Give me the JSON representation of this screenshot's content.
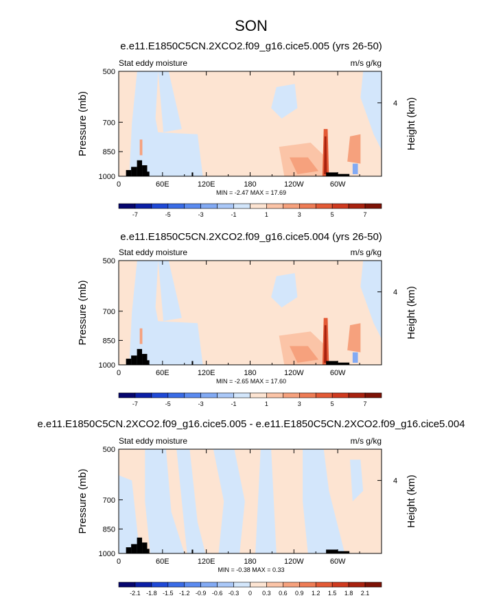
{
  "figure_title": "SON",
  "colors": {
    "land": "#000000",
    "frame": "#000000",
    "background": "#ffffff"
  },
  "chart_data": [
    {
      "type": "heatmap",
      "title": "e.e11.E1850C5CN.2XCO2.f09_g16.cice5.005 (yrs 26-50)",
      "left_label": "Stat eddy moisture",
      "right_label": "m/s g/kg",
      "ylabel": "Pressure (mb)",
      "ylabel_right": "Height (km)",
      "x_ticks": [
        "0",
        "60E",
        "120E",
        "180",
        "120W",
        "60W"
      ],
      "x_tick_values": [
        0,
        60,
        120,
        180,
        240,
        300
      ],
      "xlim": [
        0,
        360
      ],
      "y_ticks": [
        "500",
        "700",
        "850",
        "1000"
      ],
      "y_tick_values": [
        500,
        700,
        850,
        1000
      ],
      "ylim": [
        1000,
        500
      ],
      "y_right_ticks": [
        "4"
      ],
      "stats": "MIN = -2.47  MAX = 17.69",
      "levels": [
        -8,
        -7,
        -6,
        -5,
        -4,
        -3,
        -2,
        -1,
        0,
        1,
        2,
        3,
        4,
        5,
        6,
        7,
        8
      ],
      "colorbar_labels": [
        "-7",
        "-5",
        "-3",
        "-1",
        "1",
        "3",
        "5",
        "7"
      ],
      "colorbar_colors": [
        "#06066e",
        "#0b1fa6",
        "#1f49d6",
        "#3a6ce6",
        "#5b8bf0",
        "#82aaf4",
        "#aac8f8",
        "#d3e6fb",
        "#fde4d2",
        "#fbc4a7",
        "#f6a17d",
        "#ee7c55",
        "#e35a36",
        "#cf3a1f",
        "#a8220f",
        "#7d1206"
      ]
    },
    {
      "type": "heatmap",
      "title": "e.e11.E1850C5CN.2XCO2.f09_g16.cice5.004 (yrs 26-50)",
      "left_label": "Stat eddy moisture",
      "right_label": "m/s g/kg",
      "ylabel": "Pressure (mb)",
      "ylabel_right": "Height (km)",
      "x_ticks": [
        "0",
        "60E",
        "120E",
        "180",
        "120W",
        "60W"
      ],
      "x_tick_values": [
        0,
        60,
        120,
        180,
        240,
        300
      ],
      "xlim": [
        0,
        360
      ],
      "y_ticks": [
        "500",
        "700",
        "850",
        "1000"
      ],
      "y_tick_values": [
        500,
        700,
        850,
        1000
      ],
      "ylim": [
        1000,
        500
      ],
      "y_right_ticks": [
        "4"
      ],
      "stats": "MIN = -2.65  MAX = 17.60",
      "levels": [
        -8,
        -7,
        -6,
        -5,
        -4,
        -3,
        -2,
        -1,
        0,
        1,
        2,
        3,
        4,
        5,
        6,
        7,
        8
      ],
      "colorbar_labels": [
        "-7",
        "-5",
        "-3",
        "-1",
        "1",
        "3",
        "5",
        "7"
      ],
      "colorbar_colors": [
        "#06066e",
        "#0b1fa6",
        "#1f49d6",
        "#3a6ce6",
        "#5b8bf0",
        "#82aaf4",
        "#aac8f8",
        "#d3e6fb",
        "#fde4d2",
        "#fbc4a7",
        "#f6a17d",
        "#ee7c55",
        "#e35a36",
        "#cf3a1f",
        "#a8220f",
        "#7d1206"
      ]
    },
    {
      "type": "heatmap",
      "title": "e.e11.E1850C5CN.2XCO2.f09_g16.cice5.005 - e.e11.E1850C5CN.2XCO2.f09_g16.cice5.004",
      "left_label": "Stat eddy moisture",
      "right_label": "m/s g/kg",
      "ylabel": "Pressure (mb)",
      "ylabel_right": "Height (km)",
      "x_ticks": [
        "0",
        "60E",
        "120E",
        "180",
        "120W",
        "60W"
      ],
      "x_tick_values": [
        0,
        60,
        120,
        180,
        240,
        300
      ],
      "xlim": [
        0,
        360
      ],
      "y_ticks": [
        "500",
        "700",
        "850",
        "1000"
      ],
      "y_tick_values": [
        500,
        700,
        850,
        1000
      ],
      "ylim": [
        1000,
        500
      ],
      "y_right_ticks": [
        "4"
      ],
      "stats": "MIN = -0.38  MAX =  0.33",
      "levels": [
        -2.4,
        -2.1,
        -1.8,
        -1.5,
        -1.2,
        -0.9,
        -0.6,
        -0.3,
        0,
        0.3,
        0.6,
        0.9,
        1.2,
        1.5,
        1.8,
        2.1,
        2.4
      ],
      "colorbar_labels": [
        "-2.1",
        "-1.8",
        "-1.5",
        "-1.2",
        "-0.9",
        "-0.6",
        "-0.3",
        "0",
        "0.3",
        "0.6",
        "0.9",
        "1.2",
        "1.5",
        "1.8",
        "2.1"
      ],
      "colorbar_colors": [
        "#06066e",
        "#0b1fa6",
        "#1f49d6",
        "#3a6ce6",
        "#5b8bf0",
        "#82aaf4",
        "#aac8f8",
        "#d3e6fb",
        "#fde4d2",
        "#fbc4a7",
        "#f6a17d",
        "#ee7c55",
        "#e35a36",
        "#cf3a1f",
        "#a8220f",
        "#7d1206"
      ]
    }
  ]
}
